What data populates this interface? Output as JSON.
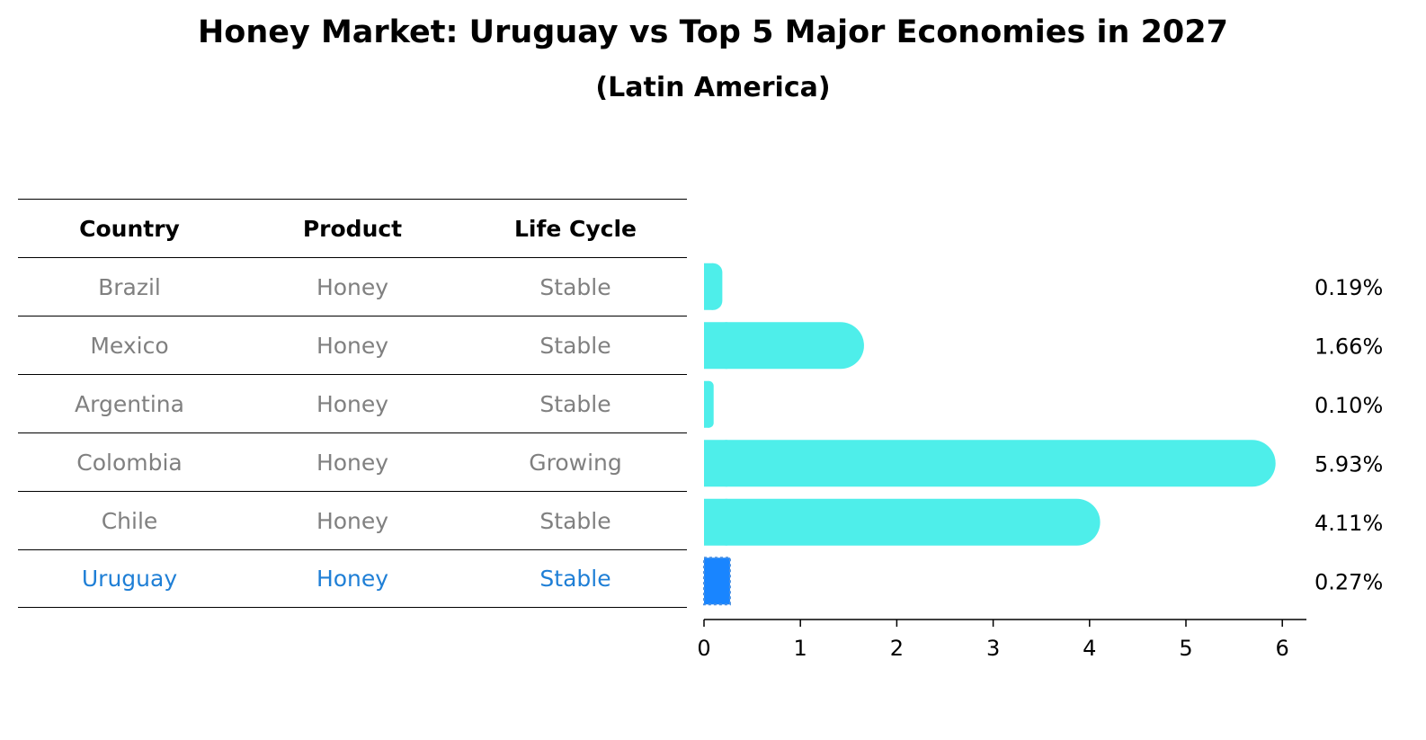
{
  "title": "Honey Market: Uruguay vs Top 5 Major Economies in 2027",
  "subtitle": "(Latin America)",
  "table": {
    "headers": [
      "Country",
      "Product",
      "Life Cycle"
    ],
    "rows": [
      [
        "Brazil",
        "Honey",
        "Stable"
      ],
      [
        "Mexico",
        "Honey",
        "Stable"
      ],
      [
        "Argentina",
        "Honey",
        "Stable"
      ],
      [
        "Colombia",
        "Honey",
        "Growing"
      ],
      [
        "Chile",
        "Honey",
        "Stable"
      ],
      [
        "Uruguay",
        "Honey",
        "Stable"
      ]
    ],
    "highlight_row": 5
  },
  "chart_data": {
    "type": "bar",
    "orientation": "horizontal",
    "categories": [
      "Brazil",
      "Mexico",
      "Argentina",
      "Colombia",
      "Chile",
      "Uruguay"
    ],
    "values": [
      0.19,
      1.66,
      0.1,
      5.93,
      4.11,
      0.27
    ],
    "value_labels": [
      "0.19%",
      "1.66%",
      "0.10%",
      "5.93%",
      "4.11%",
      "0.27%"
    ],
    "xlim": [
      0,
      6.25
    ],
    "xticks": [
      "0",
      "1",
      "2",
      "3",
      "4",
      "5",
      "6"
    ],
    "highlight": "Uruguay",
    "colors": {
      "bar": "#4eeeea",
      "highlight": "#1985ff",
      "highlight_border": "#4a90e2"
    },
    "grid": false
  }
}
